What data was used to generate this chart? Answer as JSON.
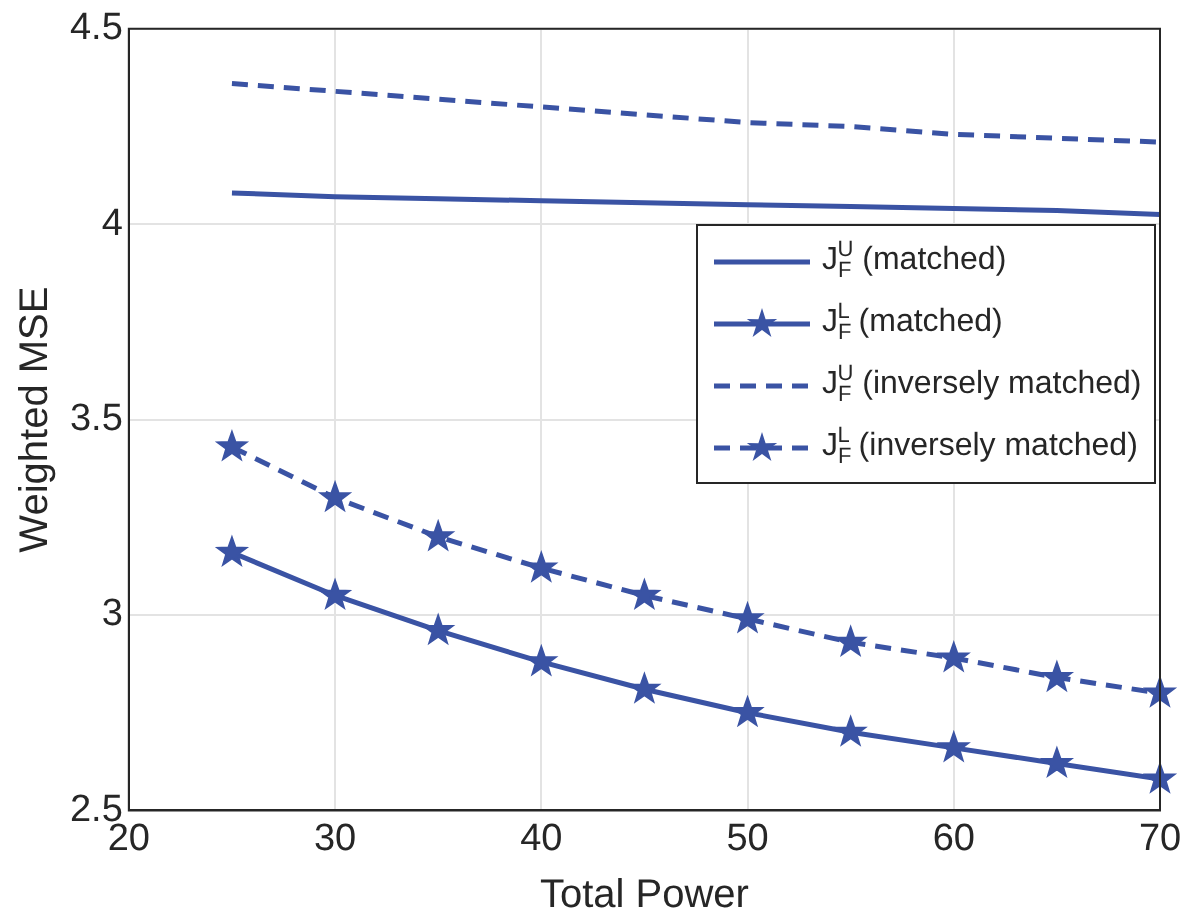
{
  "chart_data": {
    "type": "line",
    "xlabel": "Total Power",
    "ylabel": "Weighted MSE",
    "x": [
      25,
      30,
      35,
      40,
      45,
      50,
      55,
      60,
      65,
      70
    ],
    "xlim": [
      20,
      70
    ],
    "xticks": [
      20,
      30,
      40,
      50,
      60,
      70
    ],
    "ylim": [
      2.5,
      4.5
    ],
    "yticks": [
      2.5,
      3,
      3.5,
      4,
      4.5
    ],
    "grid": true,
    "legend": "right",
    "series": [
      {
        "name": "J$_{F}$$^{U}$ (matched)",
        "color": "#3a53a4",
        "marker": "none",
        "line_style": "solid",
        "values": [
          4.08,
          4.07,
          4.065,
          4.06,
          4.055,
          4.05,
          4.045,
          4.04,
          4.035,
          4.025
        ]
      },
      {
        "name": "J$_{F}$$^{L}$ (matched)",
        "color": "#3a53a4",
        "marker": "star",
        "line_style": "solid",
        "values": [
          3.16,
          3.05,
          2.96,
          2.88,
          2.81,
          2.75,
          2.7,
          2.66,
          2.62,
          2.58
        ]
      },
      {
        "name": "J$_{F}$$^{U}$ (inversely matched)",
        "color": "#3a53a4",
        "marker": "none",
        "line_style": "dashed",
        "values": [
          4.36,
          4.34,
          4.32,
          4.3,
          4.28,
          4.26,
          4.25,
          4.23,
          4.22,
          4.21
        ]
      },
      {
        "name": "J$_{F}$$^{L}$ (inversely matched)",
        "color": "#3a53a4",
        "marker": "star",
        "line_style": "dashed",
        "values": [
          3.43,
          3.3,
          3.2,
          3.12,
          3.05,
          2.99,
          2.93,
          2.89,
          2.84,
          2.8
        ]
      }
    ]
  }
}
